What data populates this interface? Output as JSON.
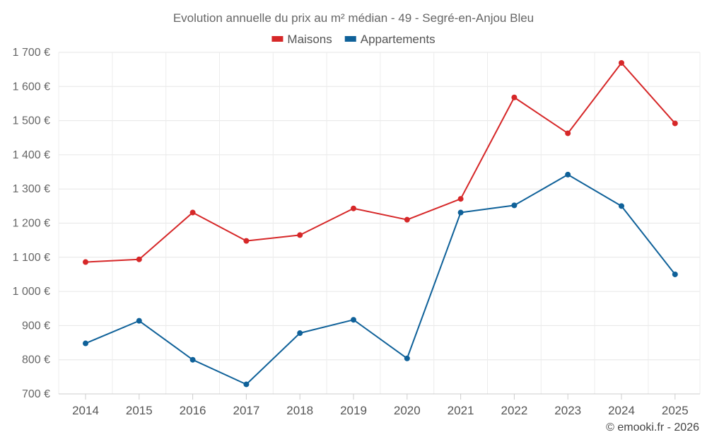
{
  "chart_data": {
    "type": "line",
    "title": "Evolution annuelle du prix au m² médian - 49 - Segré-en-Anjou Bleu",
    "categories": [
      "2014",
      "2015",
      "2016",
      "2017",
      "2018",
      "2019",
      "2020",
      "2021",
      "2022",
      "2023",
      "2024",
      "2025"
    ],
    "series": [
      {
        "name": "Maisons",
        "color": "#d62728",
        "values": [
          1086,
          1094,
          1231,
          1148,
          1165,
          1243,
          1210,
          1271,
          1568,
          1463,
          1669,
          1492
        ]
      },
      {
        "name": "Appartements",
        "color": "#0f6199",
        "values": [
          848,
          914,
          800,
          728,
          878,
          917,
          804,
          1231,
          1252,
          1342,
          1250,
          1050
        ]
      }
    ],
    "ylim": [
      700,
      1700
    ],
    "yticks": [
      700,
      800,
      900,
      1000,
      1100,
      1200,
      1300,
      1400,
      1500,
      1600,
      1700
    ],
    "ytick_labels": [
      "700 €",
      "800 €",
      "900 €",
      "1 000 €",
      "1 100 €",
      "1 200 €",
      "1 300 €",
      "1 400 €",
      "1 500 €",
      "1 600 €",
      "1 700 €"
    ],
    "xlabel": "",
    "ylabel": "",
    "grid": true,
    "legend_position": "top-center"
  },
  "credit": "© emooki.fr - 2026"
}
